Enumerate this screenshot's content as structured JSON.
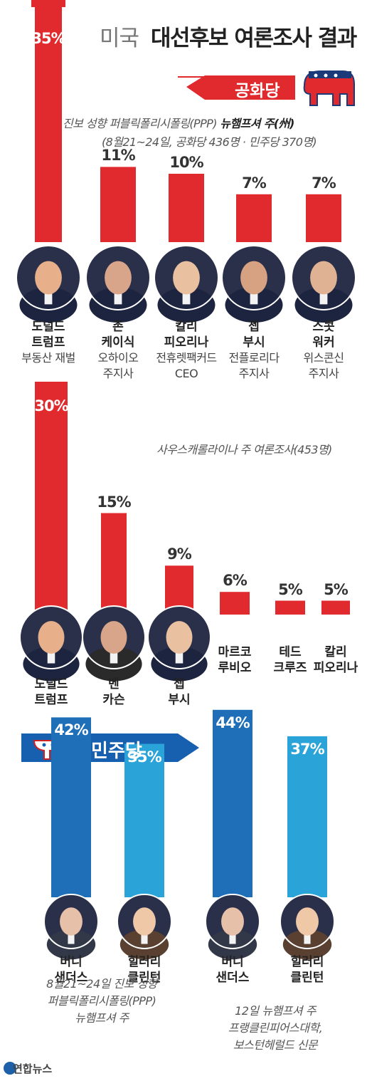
{
  "title": {
    "light": "미국",
    "bold": "대선후보 여론조사 결과"
  },
  "republican": {
    "banner": "공화당",
    "poll1": {
      "source_line1_a": "진보 성향 퍼블릭폴리시폴링(PPP)",
      "source_line1_b": "뉴햄프셔 주(州)",
      "source_line2": "(8월21~24일, 공화당 436명 · 민주당 370명)"
    },
    "poll2": {
      "source": "사우스캐롤라이나 주 여론조사(453명)"
    }
  },
  "democrat": {
    "banner": "민주당",
    "note_left": [
      "8월21~24일 진보 성향",
      "퍼블릭폴리시폴링(PPP)",
      "뉴햄프셔 주"
    ],
    "note_right": [
      "12일 뉴햄프셔 주",
      "프랭클린피어스대학,",
      "보스턴헤럴드 신문"
    ]
  },
  "colors": {
    "rep_red": "#e02a2e",
    "dem_dark": "#1e6fb8",
    "dem_light": "#2aa3d8",
    "banner_blue": "#1760b0"
  },
  "chart_data": [
    {
      "type": "bar",
      "categories": [
        "도널드 트럼프",
        "존 케이식",
        "칼리 피오리나",
        "젭 부시",
        "스콧 워커"
      ],
      "descriptions": [
        "부동산 재벌",
        "오하이오 주지사",
        "전휴렛팩커드 CEO",
        "전플로리다 주지사",
        "위스콘신 주지사"
      ],
      "values": [
        35,
        11,
        10,
        7,
        7
      ],
      "value_labels": [
        "35%",
        "11%",
        "10%",
        "7%",
        "7%"
      ],
      "name_lines": [
        [
          "도널드",
          "트럼프"
        ],
        [
          "존",
          "케이식"
        ],
        [
          "칼리",
          "피오리나"
        ],
        [
          "젭",
          "부시"
        ],
        [
          "스콧",
          "워커"
        ]
      ],
      "desc_lines": [
        [
          "부동산 재벌"
        ],
        [
          "오하이오",
          "주지사"
        ],
        [
          "전휴렛팩커드",
          "CEO"
        ],
        [
          "전플로리다",
          "주지사"
        ],
        [
          "위스콘신",
          "주지사"
        ]
      ],
      "color": "#e02a2e"
    },
    {
      "type": "bar",
      "categories": [
        "도널드 트럼프",
        "벤 카슨",
        "젭 부시",
        "마르코 루비오",
        "테드 크루즈",
        "칼리 피오리나"
      ],
      "values": [
        30,
        15,
        9,
        6,
        5,
        5
      ],
      "value_labels": [
        "30%",
        "15%",
        "9%",
        "6%",
        "5%",
        "5%"
      ],
      "name_lines": [
        [
          "도널드",
          "트럼프"
        ],
        [
          "벤",
          "카슨"
        ],
        [
          "젭",
          "부시"
        ],
        [
          "마르코",
          "루비오"
        ],
        [
          "테드",
          "크루즈"
        ],
        [
          "칼리",
          "피오리나"
        ]
      ],
      "color": "#e02a2e"
    },
    {
      "type": "bar",
      "categories": [
        "버니 샌더스",
        "힐러리 클린턴"
      ],
      "values": [
        42,
        35
      ],
      "value_labels": [
        "42%",
        "35%"
      ],
      "name_lines": [
        [
          "버니",
          "샌더스"
        ],
        [
          "힐러리",
          "클린턴"
        ]
      ],
      "colors": [
        "#1e6fb8",
        "#2aa3d8"
      ]
    },
    {
      "type": "bar",
      "categories": [
        "버니 샌더스",
        "힐러리 클린턴"
      ],
      "values": [
        44,
        37
      ],
      "value_labels": [
        "44%",
        "37%"
      ],
      "name_lines": [
        [
          "버니",
          "샌더스"
        ],
        [
          "힐러리",
          "클린턴"
        ]
      ],
      "colors": [
        "#1e6fb8",
        "#2aa3d8"
      ]
    }
  ],
  "logo": "연합뉴스"
}
